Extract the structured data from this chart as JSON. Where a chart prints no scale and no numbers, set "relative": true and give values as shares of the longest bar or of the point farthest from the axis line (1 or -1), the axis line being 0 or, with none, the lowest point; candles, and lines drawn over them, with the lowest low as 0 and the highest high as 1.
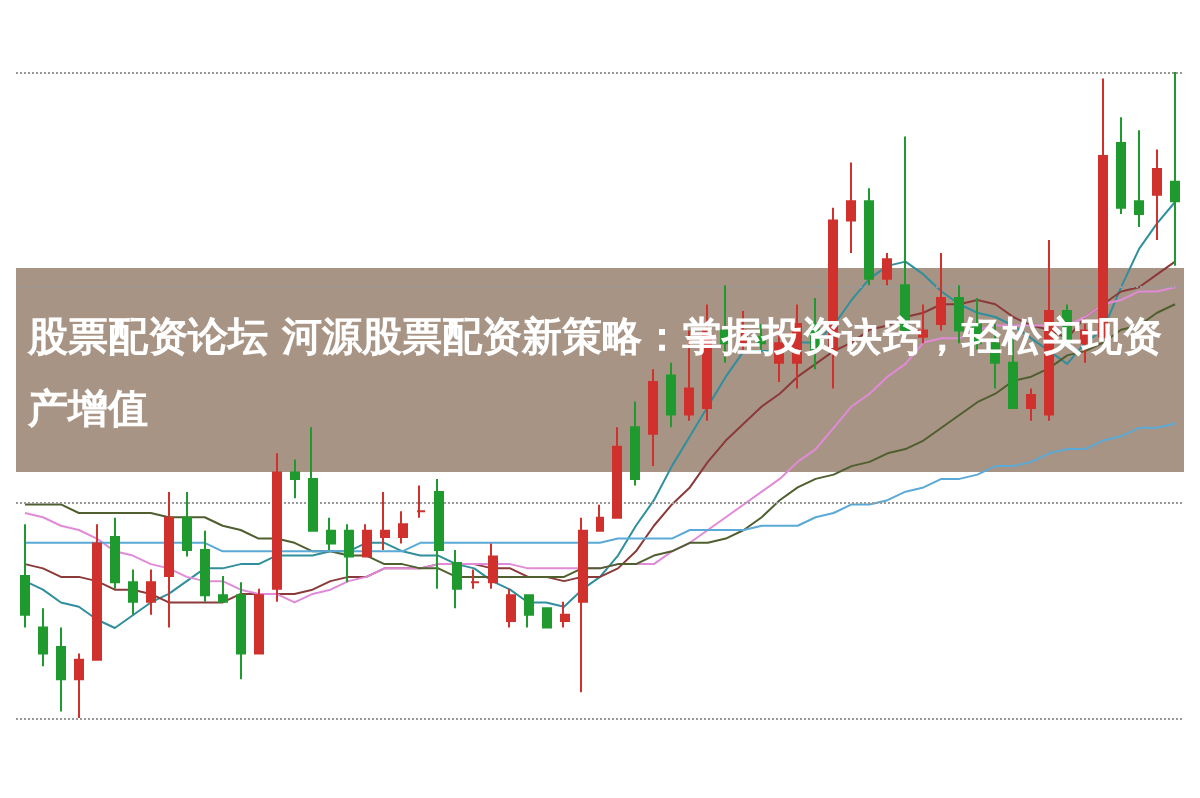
{
  "chart_data": [
    {
      "type": "candlestick",
      "title": "股票配资论坛 河源股票配资新策略：掌握投资诀窍，轻松实现资产增值",
      "relative": true,
      "grid": "y",
      "categories": [
        null,
        null,
        null,
        null,
        null,
        null,
        null,
        null,
        null,
        null,
        null,
        null,
        null,
        null,
        null,
        null,
        null,
        null,
        null,
        null,
        null,
        null,
        null,
        null,
        null,
        null,
        null,
        null,
        null,
        null,
        null,
        null,
        null,
        null,
        null,
        null,
        null,
        null,
        null,
        null,
        null,
        null,
        null,
        null,
        null,
        null,
        null,
        null,
        null,
        null,
        null,
        null,
        null,
        null,
        null,
        null,
        null,
        null,
        null,
        null,
        null,
        null,
        null,
        null,
        null
      ],
      "ohlc": [
        [
          0.22,
          0.3,
          0.14,
          0.16
        ],
        [
          0.14,
          0.17,
          0.08,
          0.1
        ],
        [
          0.11,
          0.14,
          0.01,
          0.06
        ],
        [
          0.06,
          0.1,
          0,
          0.09
        ],
        [
          0.09,
          0.3,
          0.09,
          0.27
        ],
        [
          0.28,
          0.31,
          0.2,
          0.21
        ],
        [
          0.21,
          0.23,
          0.16,
          0.18
        ],
        [
          0.18,
          0.23,
          0.16,
          0.21
        ],
        [
          0.22,
          0.35,
          0.14,
          0.31
        ],
        [
          0.31,
          0.35,
          0.25,
          0.26
        ],
        [
          0.26,
          0.29,
          0.18,
          0.19
        ],
        [
          0.19,
          0.22,
          0.18,
          0.18
        ],
        [
          0.19,
          0.21,
          0.06,
          0.1
        ],
        [
          0.1,
          0.2,
          0.1,
          0.19
        ],
        [
          0.2,
          0.41,
          0.18,
          0.38
        ],
        [
          0.38,
          0.4,
          0.34,
          0.37
        ],
        [
          0.37,
          0.45,
          0.29,
          0.29
        ],
        [
          0.29,
          0.31,
          0.26,
          0.27
        ],
        [
          0.29,
          0.3,
          0.21,
          0.25
        ],
        [
          0.25,
          0.3,
          0.25,
          0.29
        ],
        [
          0.28,
          0.35,
          0.26,
          0.29
        ],
        [
          0.28,
          0.32,
          0.27,
          0.3
        ],
        [
          0.32,
          0.36,
          0.31,
          0.32
        ],
        [
          0.35,
          0.37,
          0.2,
          0.26
        ],
        [
          0.24,
          0.26,
          0.17,
          0.2
        ],
        [
          0.21,
          0.23,
          0.2,
          0.21
        ],
        [
          0.21,
          0.27,
          0.2,
          0.25
        ],
        [
          0.15,
          0.2,
          0.14,
          0.19
        ],
        [
          0.19,
          0.19,
          0.14,
          0.16
        ],
        [
          0.17,
          0.17,
          0.14,
          0.14
        ],
        [
          0.15,
          0.18,
          0.14,
          0.16
        ],
        [
          0.18,
          0.31,
          0.04,
          0.29
        ],
        [
          0.29,
          0.33,
          0.29,
          0.31
        ],
        [
          0.31,
          0.45,
          0.31,
          0.42
        ],
        [
          0.45,
          0.49,
          0.36,
          0.37
        ],
        [
          0.44,
          0.54,
          0.39,
          0.52
        ],
        [
          0.53,
          0.55,
          0.45,
          0.47
        ],
        [
          0.47,
          0.6,
          0.46,
          0.51
        ],
        [
          0.48,
          0.64,
          0.46,
          0.6
        ],
        [
          0.6,
          0.67,
          0.55,
          0.58
        ],
        [
          0.58,
          0.63,
          0.57,
          0.6
        ],
        [
          0.59,
          0.61,
          0.57,
          0.58
        ],
        [
          0.55,
          0.61,
          0.52,
          0.58
        ],
        [
          0.55,
          0.64,
          0.51,
          0.61
        ],
        [
          0.61,
          0.65,
          0.54,
          0.57
        ],
        [
          0.57,
          0.79,
          0.51,
          0.77
        ],
        [
          0.77,
          0.86,
          0.72,
          0.8
        ],
        [
          0.8,
          0.82,
          0.67,
          0.68
        ],
        [
          0.68,
          0.72,
          0.67,
          0.71
        ],
        [
          0.67,
          0.9,
          0.59,
          0.6
        ],
        [
          0.59,
          0.64,
          0.58,
          0.6
        ],
        [
          0.61,
          0.72,
          0.6,
          0.65
        ],
        [
          0.65,
          0.67,
          0.58,
          0.6
        ],
        [
          0.61,
          0.65,
          0.57,
          0.58
        ],
        [
          0.58,
          0.61,
          0.51,
          0.55
        ],
        [
          0.55,
          0.6,
          0.48,
          0.48
        ],
        [
          0.48,
          0.51,
          0.46,
          0.5
        ],
        [
          0.47,
          0.74,
          0.46,
          0.63
        ],
        [
          0.63,
          0.64,
          0.58,
          0.58
        ],
        [
          0.58,
          0.61,
          0.55,
          0.6
        ],
        [
          0.59,
          0.99,
          0.59,
          0.87
        ],
        [
          0.89,
          0.93,
          0.78,
          0.79
        ],
        [
          0.8,
          0.91,
          0.76,
          0.78
        ],
        [
          0.81,
          0.88,
          0.74,
          0.85
        ],
        [
          0.83,
          1,
          0.7,
          0.8
        ]
      ]
    },
    {
      "type": "line",
      "relative": true,
      "categories": [
        null,
        null,
        null,
        null,
        null,
        null,
        null,
        null,
        null,
        null,
        null,
        null,
        null,
        null,
        null,
        null,
        null,
        null,
        null,
        null,
        null,
        null,
        null,
        null,
        null,
        null,
        null,
        null,
        null,
        null,
        null,
        null,
        null,
        null,
        null,
        null,
        null,
        null,
        null,
        null,
        null,
        null,
        null,
        null,
        null,
        null,
        null,
        null,
        null,
        null,
        null,
        null,
        null,
        null,
        null,
        null,
        null,
        null,
        null,
        null,
        null,
        null,
        null,
        null,
        null
      ],
      "series": [
        {
          "color": "#2f8f9d",
          "values": [
            0.11,
            0.09,
            0.06,
            0.05,
            0.02,
            0,
            0.03,
            0.06,
            0.08,
            0.11,
            0.14,
            0.14,
            0.15,
            0.15,
            0.17,
            0.17,
            0.17,
            0.18,
            0.18,
            0.2,
            0.2,
            0.18,
            0.17,
            0.17,
            0.15,
            0.14,
            0.11,
            0.09,
            0.06,
            0.06,
            0.05,
            0.09,
            0.12,
            0.17,
            0.24,
            0.3,
            0.38,
            0.45,
            0.52,
            0.59,
            0.65,
            0.65,
            0.65,
            0.67,
            0.67,
            0.71,
            0.77,
            0.82,
            0.85,
            0.86,
            0.83,
            0.79,
            0.76,
            0.74,
            0.73,
            0.71,
            0.68,
            0.65,
            0.62,
            0.67,
            0.7,
            0.8,
            0.89,
            0.95,
            1
          ]
        },
        {
          "color": "#8b3a3a",
          "values": [
            0.15,
            0.14,
            0.12,
            0.12,
            0.11,
            0.09,
            0.09,
            0.08,
            0.06,
            0.06,
            0.06,
            0.06,
            0.08,
            0.08,
            0.08,
            0.08,
            0.09,
            0.11,
            0.12,
            0.12,
            0.14,
            0.14,
            0.14,
            0.15,
            0.15,
            0.15,
            0.14,
            0.14,
            0.12,
            0.12,
            0.11,
            0.12,
            0.12,
            0.14,
            0.18,
            0.24,
            0.29,
            0.33,
            0.39,
            0.44,
            0.48,
            0.52,
            0.55,
            0.59,
            0.62,
            0.65,
            0.67,
            0.7,
            0.71,
            0.73,
            0.74,
            0.76,
            0.76,
            0.77,
            0.76,
            0.73,
            0.71,
            0.7,
            0.68,
            0.73,
            0.76,
            0.79,
            0.8,
            0.83,
            0.86
          ]
        },
        {
          "color": "#e08ad8",
          "values": [
            0.27,
            0.26,
            0.24,
            0.23,
            0.21,
            0.18,
            0.17,
            0.15,
            0.14,
            0.12,
            0.11,
            0.11,
            0.09,
            0.08,
            0.08,
            0.06,
            0.08,
            0.09,
            0.11,
            0.12,
            0.14,
            0.14,
            0.14,
            0.15,
            0.15,
            0.15,
            0.15,
            0.15,
            0.14,
            0.14,
            0.14,
            0.14,
            0.14,
            0.15,
            0.15,
            0.15,
            0.18,
            0.2,
            0.23,
            0.26,
            0.29,
            0.32,
            0.35,
            0.39,
            0.42,
            0.47,
            0.52,
            0.55,
            0.59,
            0.62,
            0.67,
            0.68,
            0.68,
            0.7,
            0.71,
            0.71,
            0.71,
            0.71,
            0.71,
            0.73,
            0.76,
            0.77,
            0.79,
            0.79,
            0.8
          ]
        },
        {
          "color": "#4f5f2f",
          "values": [
            0.29,
            0.29,
            0.29,
            0.27,
            0.27,
            0.27,
            0.27,
            0.27,
            0.26,
            0.26,
            0.26,
            0.24,
            0.23,
            0.21,
            0.21,
            0.2,
            0.18,
            0.18,
            0.17,
            0.17,
            0.15,
            0.15,
            0.14,
            0.14,
            0.12,
            0.12,
            0.12,
            0.12,
            0.12,
            0.12,
            0.12,
            0.14,
            0.14,
            0.15,
            0.15,
            0.17,
            0.18,
            0.2,
            0.2,
            0.21,
            0.23,
            0.26,
            0.3,
            0.33,
            0.35,
            0.36,
            0.38,
            0.39,
            0.41,
            0.42,
            0.44,
            0.47,
            0.5,
            0.53,
            0.55,
            0.58,
            0.59,
            0.61,
            0.64,
            0.65,
            0.67,
            0.7,
            0.71,
            0.74,
            0.76
          ]
        },
        {
          "color": "#5aa9d6",
          "values": [
            0.2,
            0.2,
            0.2,
            0.2,
            0.2,
            0.2,
            0.2,
            0.2,
            0.2,
            0.2,
            0.2,
            0.18,
            0.18,
            0.18,
            0.18,
            0.18,
            0.18,
            0.18,
            0.18,
            0.18,
            0.18,
            0.18,
            0.2,
            0.2,
            0.2,
            0.2,
            0.2,
            0.2,
            0.2,
            0.2,
            0.2,
            0.2,
            0.2,
            0.21,
            0.21,
            0.21,
            0.21,
            0.23,
            0.23,
            0.23,
            0.23,
            0.24,
            0.24,
            0.24,
            0.26,
            0.27,
            0.29,
            0.29,
            0.3,
            0.32,
            0.33,
            0.35,
            0.35,
            0.36,
            0.38,
            0.38,
            0.39,
            0.41,
            0.42,
            0.42,
            0.44,
            0.45,
            0.47,
            0.47,
            0.48
          ]
        }
      ]
    }
  ]
}
